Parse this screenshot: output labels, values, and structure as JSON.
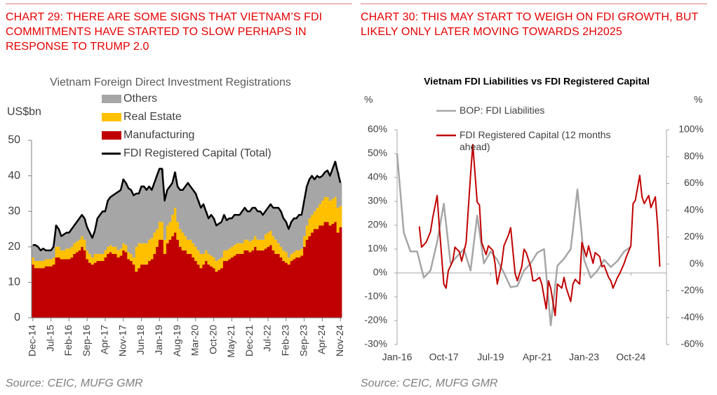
{
  "chart_data": [
    {
      "type": "area",
      "heading": "CHART 29: THERE ARE SOME SIGNS THAT VIETNAM’S FDI COMMITMENTS HAVE STARTED TO SLOW PERHAPS IN RESPONSE TO TRUMP 2.0",
      "title": "Vietnam Foreign Direct Investment Registrations",
      "ylabel": "US$bn",
      "source": "Source: CEIC, MUFG GMR",
      "stacked": true,
      "categories": [
        "Dec-14",
        null,
        null,
        null,
        null,
        null,
        null,
        "Jul-15",
        null,
        null,
        null,
        null,
        null,
        null,
        "Feb-16",
        null,
        null,
        null,
        null,
        null,
        null,
        "Sep-16",
        null,
        null,
        null,
        null,
        null,
        null,
        "Apr-17",
        null,
        null,
        null,
        null,
        null,
        null,
        "Nov-17",
        null,
        null,
        null,
        null,
        null,
        null,
        "Jun-18",
        null,
        null,
        null,
        null,
        null,
        null,
        "Jan-19",
        null,
        null,
        null,
        null,
        null,
        null,
        "Aug-19",
        null,
        null,
        null,
        null,
        null,
        null,
        "Mar-20",
        null,
        null,
        null,
        null,
        null,
        null,
        "Oct-20",
        null,
        null,
        null,
        null,
        null,
        null,
        "May-21",
        null,
        null,
        null,
        null,
        null,
        null,
        "Dec-21",
        null,
        null,
        null,
        null,
        null,
        null,
        "Jul-22",
        null,
        null,
        null,
        null,
        null,
        null,
        "Feb-23",
        null,
        null,
        null,
        null,
        null,
        null,
        "Sep-23",
        null,
        null,
        null,
        null,
        null,
        null,
        "Apr-24",
        null,
        null,
        null,
        null,
        null,
        null,
        "Nov-24"
      ],
      "series": [
        {
          "name": "Others",
          "color": "#a6a6a6",
          "values": [
            3.5,
            4.5,
            4,
            3,
            3.5,
            2.5,
            2.5,
            2.5,
            3,
            6,
            5,
            4,
            4.5,
            4.5,
            4.5,
            5,
            5,
            5.5,
            6,
            6,
            6,
            6.5,
            6,
            5.5,
            6.5,
            10,
            11,
            12,
            11,
            13,
            13.5,
            14.5,
            15,
            16.5,
            16.5,
            18,
            17.5,
            18,
            18,
            17.5,
            15,
            14,
            16,
            16,
            15,
            15,
            13.5,
            14,
            15,
            15,
            15,
            11,
            10,
            10,
            9,
            10,
            10,
            11,
            12,
            14,
            16,
            15,
            15,
            15,
            14,
            13,
            14,
            11,
            10,
            11.5,
            11,
            10,
            10,
            10,
            10,
            8.5,
            8.5,
            8,
            8.5,
            8,
            8,
            9,
            9,
            8,
            8.5,
            9,
            8,
            8,
            8,
            7,
            6.5,
            7,
            7.5,
            8,
            9,
            10,
            10,
            9,
            8.5,
            8,
            9,
            9.5,
            9,
            10,
            9.5,
            10,
            11,
            11,
            11,
            9,
            9,
            7.5,
            7,
            7,
            7.5,
            7,
            8.5,
            10,
            10,
            6.5
          ]
        },
        {
          "name": "Real Estate",
          "color": "#ffc000",
          "values": [
            2,
            2,
            2,
            2,
            2,
            2,
            2,
            2,
            2,
            3,
            3,
            2.5,
            2.5,
            3,
            3,
            3,
            3,
            3,
            3,
            3,
            3,
            2.5,
            2.5,
            2,
            2.5,
            2,
            2,
            2,
            2,
            2,
            2,
            2,
            2,
            2,
            2,
            2,
            2,
            2,
            2,
            2,
            7,
            7,
            6,
            6,
            6,
            6,
            6,
            6,
            5,
            5,
            5,
            4,
            5,
            5,
            6,
            7,
            5,
            5,
            5,
            4,
            4,
            4,
            4,
            4,
            4,
            4,
            3,
            3,
            3,
            3,
            3,
            3,
            3,
            3,
            3,
            3,
            3,
            3,
            3,
            3,
            3,
            3,
            3,
            3,
            3,
            3,
            3,
            3,
            3,
            3,
            4,
            4,
            4,
            4,
            4,
            3,
            3,
            3,
            3,
            2,
            2,
            2,
            2,
            2,
            2,
            3,
            4,
            5,
            5,
            5,
            6,
            6,
            7,
            7,
            7,
            7,
            7,
            7,
            7,
            6
          ]
        },
        {
          "name": "Manufacturing",
          "color": "#c00000",
          "values": [
            15,
            14,
            14,
            14,
            14,
            14.5,
            14.5,
            14.5,
            15,
            17,
            17,
            16.5,
            16.5,
            16.5,
            16.5,
            17,
            18,
            18.5,
            19,
            20,
            19,
            16.5,
            15.5,
            15,
            15.5,
            16,
            16,
            16,
            17,
            18,
            18.5,
            18,
            18,
            17,
            17.5,
            19,
            18.5,
            16.5,
            16,
            15,
            13,
            14,
            15,
            15,
            15,
            16,
            16.5,
            18,
            20,
            22,
            22,
            18,
            21,
            22,
            23,
            24,
            22,
            20,
            19,
            19,
            18,
            18,
            17,
            16,
            15,
            14,
            15,
            16,
            15,
            14.5,
            14,
            13,
            13.5,
            14,
            16,
            16,
            16.5,
            17,
            17.5,
            18,
            18,
            18,
            19,
            19,
            18.5,
            19,
            20,
            19,
            19,
            19,
            19.5,
            20,
            20.5,
            19,
            18,
            18,
            17,
            16,
            15.5,
            15,
            16,
            16.5,
            17,
            17,
            17.5,
            20,
            22,
            23,
            24,
            25,
            25,
            26,
            26,
            27,
            27,
            26,
            26.5,
            27,
            24,
            25.5
          ]
        },
        {
          "name": "FDI Registered Capital (Total)",
          "color": "#000000",
          "type": "line",
          "values": [
            20.5,
            20.5,
            20,
            19,
            19.5,
            19,
            19,
            19,
            20,
            26,
            25,
            23,
            23.5,
            24,
            24,
            25,
            26,
            27,
            28,
            29,
            28,
            25.5,
            24,
            22.5,
            24.5,
            28,
            29,
            30,
            30,
            33,
            34,
            34.5,
            35,
            35.5,
            36,
            39,
            38,
            36.5,
            36,
            34.5,
            35,
            35,
            37,
            37,
            36,
            37,
            36,
            38,
            40,
            42,
            42,
            33,
            36,
            37,
            38,
            41,
            37,
            36,
            36,
            37,
            38,
            37,
            36,
            35,
            33,
            31,
            32,
            30,
            28,
            29,
            28,
            26,
            26.5,
            27,
            29,
            27.5,
            28,
            28,
            29,
            29,
            29,
            30,
            31,
            30,
            30,
            31,
            31,
            30,
            30,
            29,
            30,
            31,
            32,
            31,
            31,
            31,
            30,
            28,
            27,
            25,
            27,
            28,
            28,
            29,
            29,
            33,
            37,
            39,
            40,
            39,
            40,
            39.5,
            40,
            41,
            41.5,
            40,
            42,
            44,
            41,
            38
          ]
        }
      ],
      "ylim": [
        0,
        50
      ],
      "yticks": [
        0,
        10,
        20,
        30,
        40,
        50
      ]
    },
    {
      "type": "line",
      "heading": "CHART 30: THIS MAY START TO WEIGH ON FDI GROWTH, BUT LIKELY ONLY LATER MOVING TOWARDS 2H2025",
      "title": "Vietnam FDI Liabilities vs FDI Registered Capital",
      "ylabel": "%",
      "y2label": "%",
      "source": "Source: CEIC, MUFG GMR",
      "xlim": [
        "Jan-16",
        "Feb-26"
      ],
      "xticks": [
        "Jan-16",
        "Oct-17",
        "Jul-19",
        "Apr-21",
        "Jan-23",
        "Oct-24"
      ],
      "ylim": [
        -30,
        60
      ],
      "yticks": [
        {
          "value": -30,
          "label": "-30%"
        },
        {
          "value": -20,
          "label": "-20%"
        },
        {
          "value": -10,
          "label": "-10%"
        },
        {
          "value": 0,
          "label": "0%"
        },
        {
          "value": 10,
          "label": "10%"
        },
        {
          "value": 20,
          "label": "20%"
        },
        {
          "value": 30,
          "label": "30%"
        },
        {
          "value": 40,
          "label": "40%"
        },
        {
          "value": 50,
          "label": "50%"
        },
        {
          "value": 60,
          "label": "60%"
        }
      ],
      "y2lim": [
        -60,
        100
      ],
      "y2ticks": [
        {
          "value": -60,
          "label": "-60%"
        },
        {
          "value": -40,
          "label": "-40%"
        },
        {
          "value": -20,
          "label": "-20%"
        },
        {
          "value": 0,
          "label": "0%"
        },
        {
          "value": 20,
          "label": "20%"
        },
        {
          "value": 40,
          "label": "40%"
        },
        {
          "value": 60,
          "label": "60%"
        },
        {
          "value": 80,
          "label": "80%"
        },
        {
          "value": 100,
          "label": "100%"
        }
      ],
      "series": [
        {
          "name": "BOP: FDI Liabilities",
          "color": "#a6a6a6",
          "x": [
            "Jan-16",
            "Apr-16",
            "Jul-16",
            "Oct-16",
            "Jan-17",
            "Apr-17",
            "Jul-17",
            "Oct-17",
            "Jan-18",
            "Apr-18",
            "Jul-18",
            "Oct-18",
            "Jan-19",
            "Apr-19",
            "Jul-19",
            "Oct-19",
            "Jan-20",
            "Apr-20",
            "Jul-20",
            "Oct-20",
            "Jan-21",
            "Apr-21",
            "Jul-21",
            "Oct-21",
            "Jan-22",
            "Apr-22",
            "Jul-22",
            "Oct-22",
            "Jan-23",
            "Apr-23",
            "Jul-23",
            "Oct-23",
            "Jan-24",
            "Apr-24",
            "Jul-24",
            "Oct-24"
          ],
          "values": [
            50,
            17,
            9,
            9,
            -2,
            1,
            13,
            29,
            4,
            7,
            10,
            1,
            24,
            4,
            9,
            5.5,
            0,
            -6,
            -5.5,
            1,
            4,
            8.5,
            10,
            -22,
            3,
            6,
            10,
            35,
            5.5,
            -2,
            1,
            5.5,
            2.5,
            5,
            9,
            11
          ]
        },
        {
          "name": "FDI Registered Capital (12 months ahead)",
          "color": "#c00000",
          "axis": "y2",
          "x": [
            "Nov-16",
            "Dec-16",
            "Feb-17",
            "Apr-17",
            "May-17",
            "Jul-17",
            "Aug-17",
            "Oct-17",
            "Nov-17",
            "Dec-17",
            "Feb-18",
            "Mar-18",
            "May-18",
            "Jun-18",
            "Aug-18",
            "Sep-18",
            "Oct-18",
            "Nov-18",
            "Jan-19",
            "Feb-19",
            "Mar-19",
            "May-19",
            "Jun-19",
            "Aug-19",
            "Sep-19",
            "Oct-19",
            "Dec-19",
            "Jan-20",
            "Mar-20",
            "Apr-20",
            "Jun-20",
            "Jul-20",
            "Sep-20",
            "Oct-20",
            "Nov-20",
            "Jan-21",
            "Feb-21",
            "Mar-21",
            "May-21",
            "Jun-21",
            "Aug-21",
            "Sep-21",
            "Oct-21",
            "Dec-21",
            "Jan-22",
            "Mar-22",
            "Apr-22",
            "May-22",
            "Jul-22",
            "Aug-22",
            "Sep-22",
            "Nov-22",
            "Dec-22",
            "Feb-23",
            "Mar-23",
            "May-23",
            "Jun-23",
            "Aug-23",
            "Sep-23",
            "Oct-23",
            "Dec-23",
            "Jan-24",
            "Feb-24",
            "Apr-24",
            "May-24",
            "Jul-24",
            "Aug-24",
            "Oct-24",
            "Nov-24",
            "Dec-24",
            "Feb-25",
            "Mar-25",
            "Apr-25",
            "Jun-25",
            "Jul-25",
            "Sep-25",
            "Oct-25",
            "Nov-25"
          ],
          "values": [
            28,
            12.5,
            16,
            24,
            34.5,
            51,
            27,
            -15,
            -18,
            -5,
            2,
            12.5,
            9,
            2,
            16,
            42,
            66,
            89,
            46,
            44,
            16,
            7,
            13.5,
            10,
            0.5,
            -15,
            0.5,
            13.5,
            21.5,
            27,
            -7,
            -12.5,
            -2,
            11,
            8.5,
            -2,
            -12.5,
            -12.5,
            -10,
            -15,
            -33.5,
            -12.5,
            -18,
            -38.5,
            -15,
            -18,
            -10,
            -18,
            -28,
            -15,
            -11.5,
            -15,
            16,
            5.5,
            13.5,
            0.5,
            8.5,
            5.5,
            -2,
            -1,
            -10,
            -12.5,
            -18,
            -10,
            -7,
            0.5,
            5.5,
            13.5,
            45,
            47.5,
            66,
            50,
            45,
            51,
            42,
            50,
            29,
            -2
          ]
        }
      ]
    }
  ]
}
